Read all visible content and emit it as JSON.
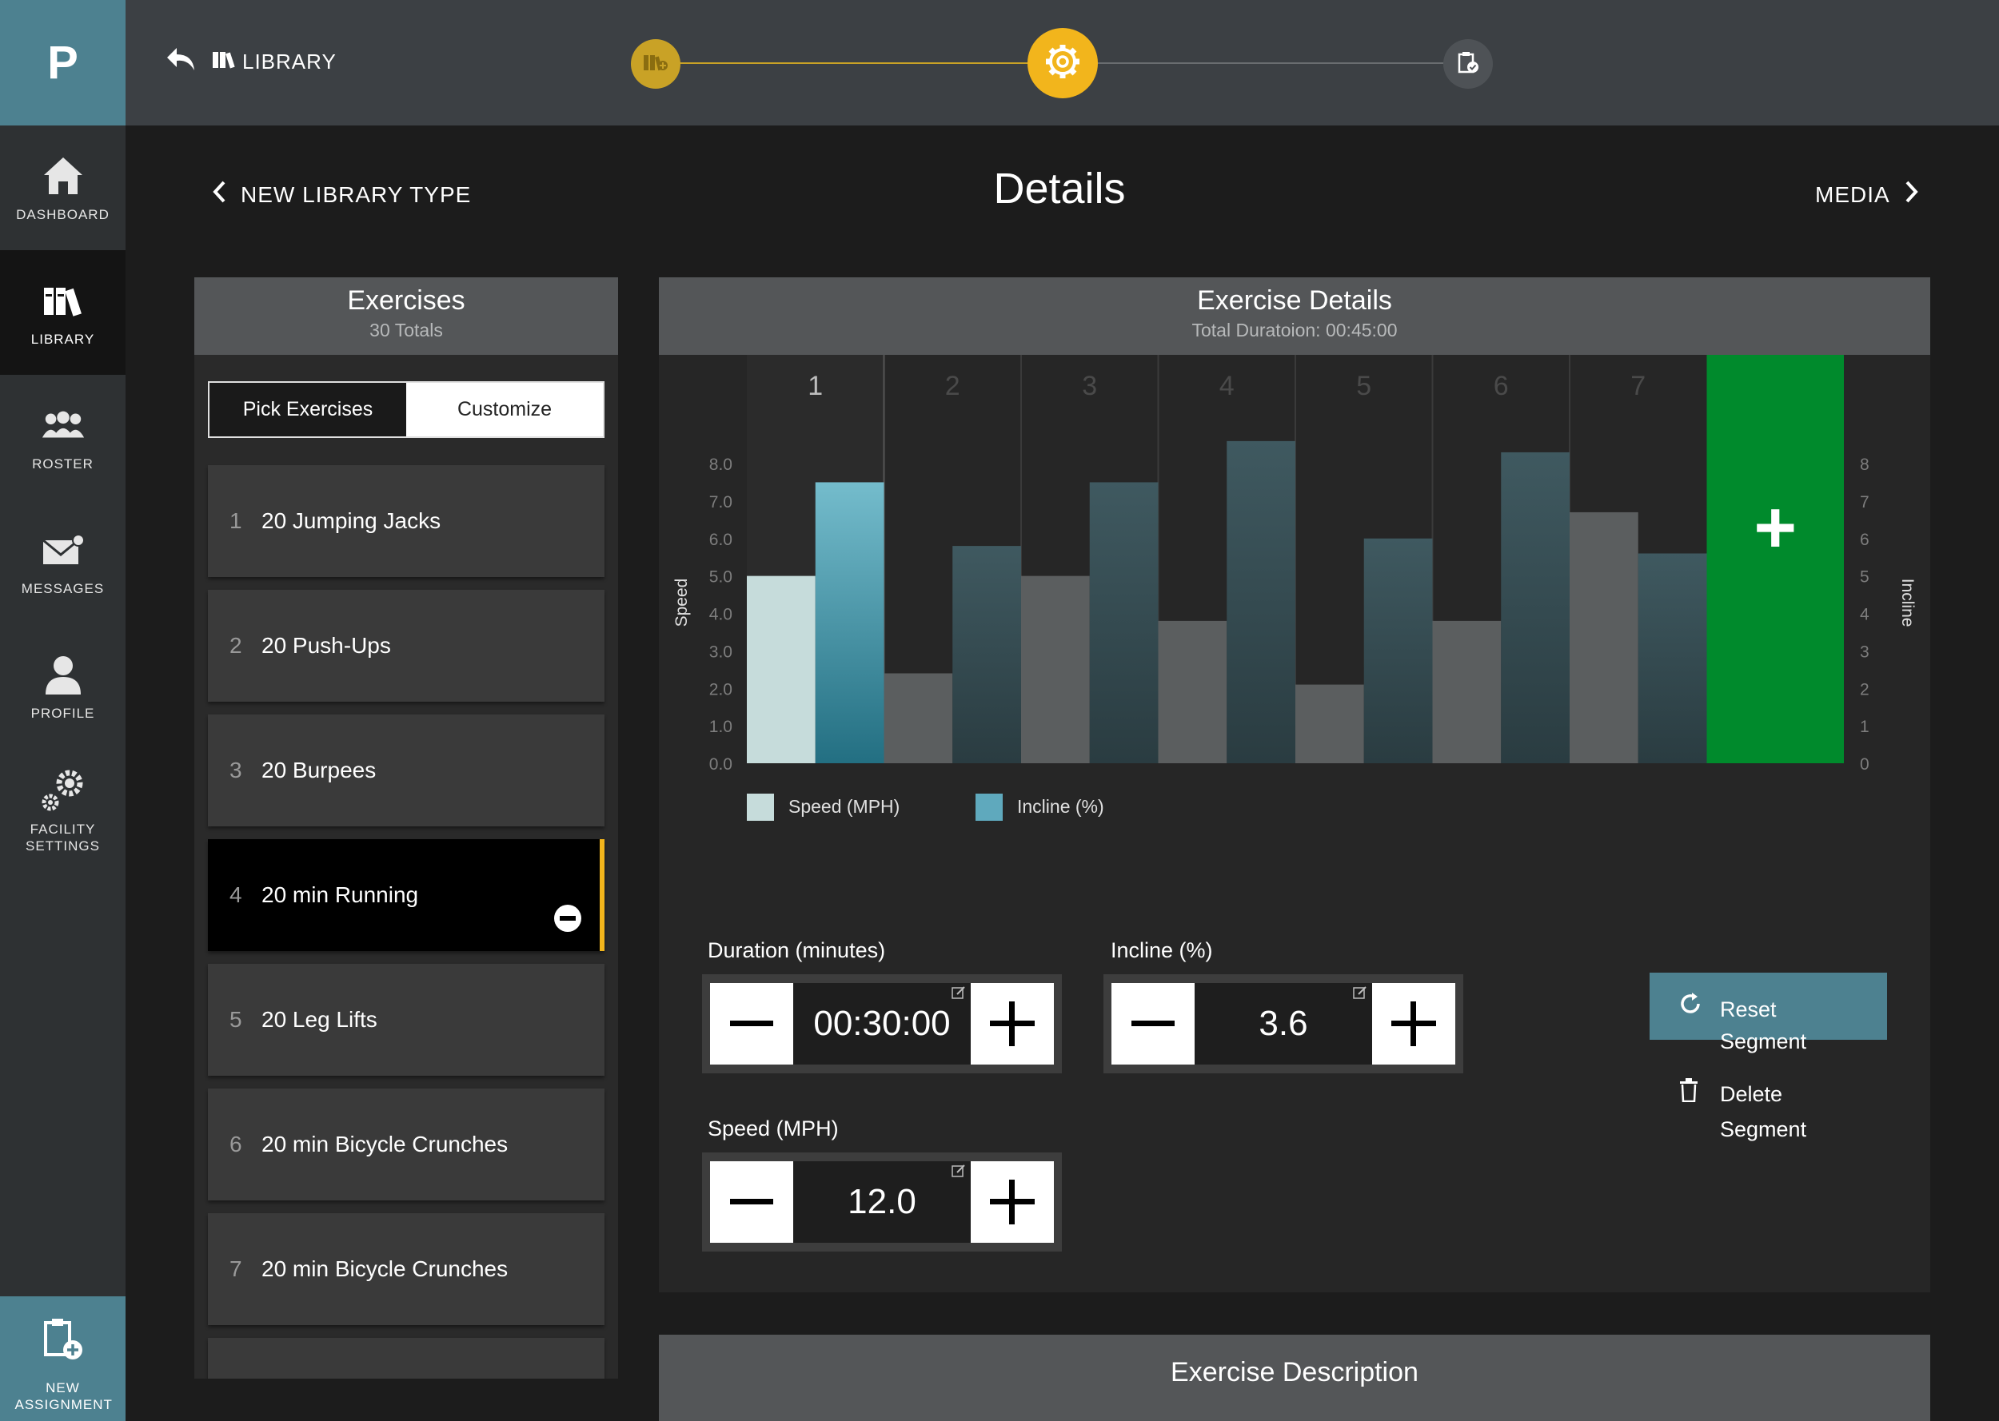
{
  "sidebar": {
    "logo": "P",
    "items": [
      {
        "label": "DASHBOARD",
        "icon": "home-icon"
      },
      {
        "label": "LIBRARY",
        "icon": "books-icon",
        "active": true
      },
      {
        "label": "ROSTER",
        "icon": "group-icon"
      },
      {
        "label": "MESSAGES",
        "icon": "envelope-icon"
      },
      {
        "label": "PROFILE",
        "icon": "person-icon"
      },
      {
        "label": "FACILITY SETTINGS",
        "icon": "gears-icon"
      }
    ],
    "new_assignment": "NEW ASSIGNMENT"
  },
  "topbar": {
    "back_label": "LIBRARY",
    "steps": [
      "library-add-icon",
      "settings-gear-icon",
      "clipboard-check-icon"
    ],
    "current_step": 2,
    "accent": "#f2b51c"
  },
  "header": {
    "prev_label": "NEW LIBRARY TYPE",
    "title": "Details",
    "next_label": "MEDIA"
  },
  "exercises": {
    "title": "Exercises",
    "subtitle": "30 Totals",
    "tabs": [
      "Pick Exercises",
      "Customize"
    ],
    "items": [
      {
        "num": "1",
        "name": "20 Jumping Jacks"
      },
      {
        "num": "2",
        "name": "20 Push-Ups"
      },
      {
        "num": "3",
        "name": "20 Burpees"
      },
      {
        "num": "4",
        "name": "20 min Running",
        "selected": true
      },
      {
        "num": "5",
        "name": "20 Leg Lifts"
      },
      {
        "num": "6",
        "name": "20 min Bicycle Crunches"
      },
      {
        "num": "7",
        "name": "20 min Bicycle Crunches"
      }
    ]
  },
  "details": {
    "title": "Exercise Details",
    "subtitle": "Total Duratoion: 00:45:00",
    "duration_label": "Duration (minutes)",
    "duration_value": "00:30:00",
    "incline_label": "Incline (%)",
    "incline_value": "3.6",
    "speed_label": "Speed (MPH)",
    "speed_value": "12.0",
    "reset_label": "Reset Segment",
    "delete_label": "Delete Segment"
  },
  "chart_data": {
    "type": "bar",
    "categories": [
      "1",
      "2",
      "3",
      "4",
      "5",
      "6",
      "7"
    ],
    "series": [
      {
        "name": "Speed (MPH)",
        "values": [
          5.0,
          2.4,
          5.0,
          3.8,
          2.1,
          3.8,
          6.7
        ]
      },
      {
        "name": "Incline (%)",
        "values": [
          7.5,
          5.8,
          7.5,
          8.6,
          6.0,
          8.3,
          5.6
        ]
      }
    ],
    "ylabel": "Speed",
    "y2label": "Incline",
    "ylim": [
      0,
      8.5
    ],
    "yticks": [
      "0.0",
      "1.0",
      "2.0",
      "3.0",
      "4.0",
      "5.0",
      "6.0",
      "7.0",
      "8.0"
    ],
    "y2ticks": [
      "0",
      "1",
      "2",
      "3",
      "4",
      "5",
      "6",
      "7",
      "8"
    ],
    "selected_segment": "1",
    "add_label": "+",
    "colors": {
      "speed": "#5b5e5f",
      "incline": "#2f4a52",
      "speed_selected": "#c6dcdb",
      "incline_selected": "#5fa9bd",
      "add": "#008a2c"
    }
  },
  "description": {
    "title": "Exercise Description"
  }
}
